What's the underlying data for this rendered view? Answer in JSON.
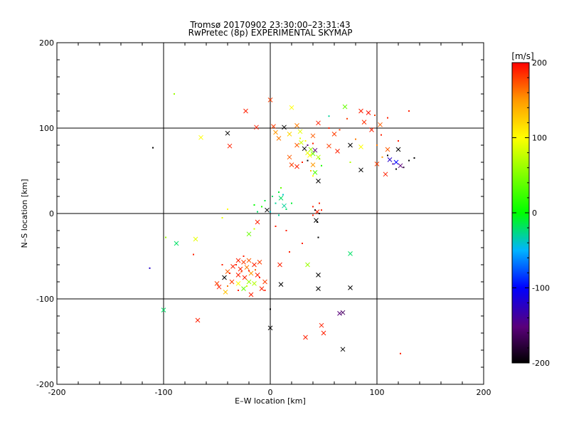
{
  "chart_data": {
    "type": "scatter",
    "title": "Tromsø 20170902 23:30:00–23:31:43",
    "subtitle": "RwPretec (8p) EXPERIMENTAL SKYMAP",
    "xlabel": "E–W location [km]",
    "ylabel": "N–S location [km]",
    "xlim": [
      -200,
      200
    ],
    "ylim": [
      -200,
      200
    ],
    "xticks": [
      -200,
      -100,
      0,
      100,
      200
    ],
    "yticks": [
      -200,
      -100,
      0,
      100,
      200
    ],
    "xtick_labels": [
      "-200",
      "-100",
      "0",
      "100",
      "200"
    ],
    "ytick_labels": [
      "-200",
      "-100",
      "0",
      "100",
      "200"
    ],
    "grid": true,
    "colorbar": {
      "label": "[m/s]",
      "min": -200,
      "max": 200,
      "ticks": [
        200,
        100,
        0,
        -100,
        -200
      ],
      "tick_labels": [
        "200",
        "100",
        "0",
        "-100",
        "-200"
      ]
    },
    "points": [
      {
        "x": 0,
        "y": 133,
        "v": 180,
        "m": "x"
      },
      {
        "x": -23,
        "y": 120,
        "v": 190,
        "m": "x"
      },
      {
        "x": 20,
        "y": 124,
        "v": 100,
        "m": "x"
      },
      {
        "x": 70,
        "y": 125,
        "v": 40,
        "m": "x"
      },
      {
        "x": -13,
        "y": 101,
        "v": 190,
        "m": "x"
      },
      {
        "x": 3,
        "y": 102,
        "v": 180,
        "m": "x"
      },
      {
        "x": 13,
        "y": 101,
        "v": -200,
        "m": "x"
      },
      {
        "x": 25,
        "y": 103,
        "v": 160,
        "m": "x"
      },
      {
        "x": 45,
        "y": 106,
        "v": 190,
        "m": "x"
      },
      {
        "x": -40,
        "y": 94,
        "v": -200,
        "m": "x"
      },
      {
        "x": -65,
        "y": 89,
        "v": 100,
        "m": "x"
      },
      {
        "x": 5,
        "y": 95,
        "v": 150,
        "m": "x"
      },
      {
        "x": 18,
        "y": 93,
        "v": 120,
        "m": "x"
      },
      {
        "x": 28,
        "y": 96,
        "v": 90,
        "m": "x"
      },
      {
        "x": 40,
        "y": 91,
        "v": 170,
        "m": "x"
      },
      {
        "x": 60,
        "y": 93,
        "v": 180,
        "m": "x"
      },
      {
        "x": 85,
        "y": 120,
        "v": 190,
        "m": "x"
      },
      {
        "x": 92,
        "y": 118,
        "v": 195,
        "m": "x"
      },
      {
        "x": 88,
        "y": 107,
        "v": 185,
        "m": "x"
      },
      {
        "x": 95,
        "y": 98,
        "v": 190,
        "m": "x"
      },
      {
        "x": 103,
        "y": 104,
        "v": 170,
        "m": "x"
      },
      {
        "x": -38,
        "y": 79,
        "v": 190,
        "m": "x"
      },
      {
        "x": 8,
        "y": 88,
        "v": 160,
        "m": "x"
      },
      {
        "x": 25,
        "y": 80,
        "v": 170,
        "m": "x"
      },
      {
        "x": 29,
        "y": 83,
        "v": 80,
        "m": "x"
      },
      {
        "x": 32,
        "y": 76,
        "v": -200,
        "m": "x"
      },
      {
        "x": 35,
        "y": 71,
        "v": 90,
        "m": "x"
      },
      {
        "x": 38,
        "y": 75,
        "v": 60,
        "m": "x"
      },
      {
        "x": 40,
        "y": 70,
        "v": 40,
        "m": "x"
      },
      {
        "x": 42,
        "y": 74,
        "v": -150,
        "m": "x"
      },
      {
        "x": 37,
        "y": 68,
        "v": 100,
        "m": "x"
      },
      {
        "x": 45,
        "y": 66,
        "v": 70,
        "m": "x"
      },
      {
        "x": 55,
        "y": 79,
        "v": 180,
        "m": "x"
      },
      {
        "x": 63,
        "y": 73,
        "v": 190,
        "m": "x"
      },
      {
        "x": 75,
        "y": 80,
        "v": -200,
        "m": "x"
      },
      {
        "x": 85,
        "y": 78,
        "v": 100,
        "m": "x"
      },
      {
        "x": 18,
        "y": 66,
        "v": 170,
        "m": "x"
      },
      {
        "x": 20,
        "y": 57,
        "v": 180,
        "m": "x"
      },
      {
        "x": 25,
        "y": 55,
        "v": 190,
        "m": "x"
      },
      {
        "x": 40,
        "y": 57,
        "v": 150,
        "m": "x"
      },
      {
        "x": 42,
        "y": 48,
        "v": 30,
        "m": "x"
      },
      {
        "x": 45,
        "y": 38,
        "v": -200,
        "m": "x"
      },
      {
        "x": 85,
        "y": 51,
        "v": -200,
        "m": "x"
      },
      {
        "x": 100,
        "y": 58,
        "v": 180,
        "m": "x"
      },
      {
        "x": 108,
        "y": 46,
        "v": 190,
        "m": "x"
      },
      {
        "x": 112,
        "y": 63,
        "v": -120,
        "m": "x"
      },
      {
        "x": 118,
        "y": 60,
        "v": -100,
        "m": "x"
      },
      {
        "x": 122,
        "y": 56,
        "v": -150,
        "m": "x"
      },
      {
        "x": 110,
        "y": 75,
        "v": 170,
        "m": "x"
      },
      {
        "x": 120,
        "y": 75,
        "v": -200,
        "m": "x"
      },
      {
        "x": 10,
        "y": 18,
        "v": -20,
        "m": "x"
      },
      {
        "x": 13,
        "y": 9,
        "v": -30,
        "m": "x"
      },
      {
        "x": -3,
        "y": 4,
        "v": -200,
        "m": "x"
      },
      {
        "x": 44,
        "y": 2,
        "v": 190,
        "m": "x"
      },
      {
        "x": 43,
        "y": -8,
        "v": -200,
        "m": "x"
      },
      {
        "x": -12,
        "y": -10,
        "v": 190,
        "m": "x"
      },
      {
        "x": -20,
        "y": -24,
        "v": 40,
        "m": "x"
      },
      {
        "x": -70,
        "y": -30,
        "v": 90,
        "m": "x"
      },
      {
        "x": -88,
        "y": -35,
        "v": -20,
        "m": "x"
      },
      {
        "x": -30,
        "y": -55,
        "v": 190,
        "m": "x"
      },
      {
        "x": -25,
        "y": -57,
        "v": 180,
        "m": "x"
      },
      {
        "x": -20,
        "y": -55,
        "v": 170,
        "m": "x"
      },
      {
        "x": -35,
        "y": -62,
        "v": 190,
        "m": "x"
      },
      {
        "x": -28,
        "y": -65,
        "v": 190,
        "m": "x"
      },
      {
        "x": -22,
        "y": -63,
        "v": 160,
        "m": "x"
      },
      {
        "x": -15,
        "y": -60,
        "v": 190,
        "m": "x"
      },
      {
        "x": -10,
        "y": -57,
        "v": 180,
        "m": "x"
      },
      {
        "x": -40,
        "y": -68,
        "v": 170,
        "m": "x"
      },
      {
        "x": -30,
        "y": -72,
        "v": 190,
        "m": "x"
      },
      {
        "x": -24,
        "y": -75,
        "v": 190,
        "m": "x"
      },
      {
        "x": -18,
        "y": -70,
        "v": 150,
        "m": "x"
      },
      {
        "x": -12,
        "y": -72,
        "v": 190,
        "m": "x"
      },
      {
        "x": -36,
        "y": -80,
        "v": 180,
        "m": "x"
      },
      {
        "x": -30,
        "y": -82,
        "v": 100,
        "m": "x"
      },
      {
        "x": -20,
        "y": -80,
        "v": 60,
        "m": "x"
      },
      {
        "x": -15,
        "y": -82,
        "v": 70,
        "m": "x"
      },
      {
        "x": -43,
        "y": -75,
        "v": -200,
        "m": "x"
      },
      {
        "x": -48,
        "y": -86,
        "v": 190,
        "m": "x"
      },
      {
        "x": -50,
        "y": -82,
        "v": 180,
        "m": "x"
      },
      {
        "x": -42,
        "y": -92,
        "v": 130,
        "m": "x"
      },
      {
        "x": -25,
        "y": -88,
        "v": 40,
        "m": "x"
      },
      {
        "x": -8,
        "y": -88,
        "v": 190,
        "m": "x"
      },
      {
        "x": -5,
        "y": -80,
        "v": 180,
        "m": "x"
      },
      {
        "x": -18,
        "y": -95,
        "v": 190,
        "m": "x"
      },
      {
        "x": 9,
        "y": -60,
        "v": 190,
        "m": "x"
      },
      {
        "x": 35,
        "y": -60,
        "v": 60,
        "m": "x"
      },
      {
        "x": 75,
        "y": -47,
        "v": -20,
        "m": "x"
      },
      {
        "x": 45,
        "y": -72,
        "v": -200,
        "m": "x"
      },
      {
        "x": 10,
        "y": -83,
        "v": -200,
        "m": "x"
      },
      {
        "x": 45,
        "y": -88,
        "v": -200,
        "m": "x"
      },
      {
        "x": 75,
        "y": -87,
        "v": -200,
        "m": "x"
      },
      {
        "x": -100,
        "y": -113,
        "v": -20,
        "m": "x"
      },
      {
        "x": -68,
        "y": -125,
        "v": 190,
        "m": "x"
      },
      {
        "x": 65,
        "y": -117,
        "v": -150,
        "m": "x"
      },
      {
        "x": 68,
        "y": -116,
        "v": -160,
        "m": "x"
      },
      {
        "x": 0,
        "y": -134,
        "v": -200,
        "m": "x"
      },
      {
        "x": 48,
        "y": -131,
        "v": 190,
        "m": "x"
      },
      {
        "x": 50,
        "y": -140,
        "v": 190,
        "m": "x"
      },
      {
        "x": 33,
        "y": -145,
        "v": 190,
        "m": "x"
      },
      {
        "x": 68,
        "y": -159,
        "v": -200,
        "m": "x"
      },
      {
        "x": -110,
        "y": 77,
        "v": -200,
        "m": "dot"
      },
      {
        "x": -90,
        "y": 140,
        "v": 60,
        "m": "dot"
      },
      {
        "x": -45,
        "y": -5,
        "v": 90,
        "m": "dot"
      },
      {
        "x": -40,
        "y": 5,
        "v": 100,
        "m": "dot"
      },
      {
        "x": -113,
        "y": -64,
        "v": -120,
        "m": "dot"
      },
      {
        "x": -98,
        "y": -28,
        "v": 60,
        "m": "dot"
      },
      {
        "x": -72,
        "y": -48,
        "v": 190,
        "m": "dot"
      },
      {
        "x": 0,
        "y": -112,
        "v": -200,
        "m": "dot"
      },
      {
        "x": 122,
        "y": -164,
        "v": 190,
        "m": "dot"
      },
      {
        "x": 30,
        "y": -35,
        "v": 190,
        "m": "dot"
      },
      {
        "x": 45,
        "y": -28,
        "v": -200,
        "m": "dot"
      },
      {
        "x": 18,
        "y": -45,
        "v": 190,
        "m": "dot"
      },
      {
        "x": 55,
        "y": 114,
        "v": -30,
        "m": "dot"
      },
      {
        "x": 72,
        "y": 111,
        "v": 180,
        "m": "dot"
      },
      {
        "x": 130,
        "y": 120,
        "v": 190,
        "m": "dot"
      },
      {
        "x": 135,
        "y": 65,
        "v": -200,
        "m": "dot"
      },
      {
        "x": 130,
        "y": 62,
        "v": -200,
        "m": "dot"
      },
      {
        "x": 125,
        "y": 54,
        "v": -180,
        "m": "dot"
      },
      {
        "x": 118,
        "y": 52,
        "v": -200,
        "m": "dot"
      },
      {
        "x": 115,
        "y": 58,
        "v": -140,
        "m": "dot"
      },
      {
        "x": 110,
        "y": 68,
        "v": -200,
        "m": "dot"
      },
      {
        "x": 105,
        "y": 66,
        "v": 150,
        "m": "dot"
      },
      {
        "x": 100,
        "y": 80,
        "v": 160,
        "m": "dot"
      },
      {
        "x": 104,
        "y": 92,
        "v": 190,
        "m": "dot"
      },
      {
        "x": 98,
        "y": 115,
        "v": 180,
        "m": "dot"
      },
      {
        "x": 110,
        "y": 112,
        "v": 190,
        "m": "dot"
      },
      {
        "x": 120,
        "y": 85,
        "v": 190,
        "m": "dot"
      },
      {
        "x": 8,
        "y": 25,
        "v": -10,
        "m": "dot"
      },
      {
        "x": 12,
        "y": 22,
        "v": -40,
        "m": "dot"
      },
      {
        "x": 2,
        "y": 20,
        "v": -20,
        "m": "dot"
      },
      {
        "x": -5,
        "y": 15,
        "v": -10,
        "m": "dot"
      },
      {
        "x": 5,
        "y": 12,
        "v": -30,
        "m": "dot"
      },
      {
        "x": -8,
        "y": 8,
        "v": 10,
        "m": "dot"
      },
      {
        "x": 15,
        "y": 5,
        "v": -20,
        "m": "dot"
      },
      {
        "x": 20,
        "y": 12,
        "v": -10,
        "m": "dot"
      },
      {
        "x": 0,
        "y": 2,
        "v": -40,
        "m": "dot"
      },
      {
        "x": -12,
        "y": 2,
        "v": -20,
        "m": "dot"
      },
      {
        "x": 8,
        "y": -2,
        "v": -30,
        "m": "dot"
      },
      {
        "x": -15,
        "y": 10,
        "v": 0,
        "m": "dot"
      },
      {
        "x": 10,
        "y": 30,
        "v": 40,
        "m": "dot"
      },
      {
        "x": 42,
        "y": 4,
        "v": -200,
        "m": "dot"
      },
      {
        "x": 46,
        "y": 0,
        "v": -200,
        "m": "dot"
      },
      {
        "x": 40,
        "y": -2,
        "v": 190,
        "m": "dot"
      },
      {
        "x": 44,
        "y": -10,
        "v": -200,
        "m": "dot"
      },
      {
        "x": 48,
        "y": 4,
        "v": 190,
        "m": "dot"
      },
      {
        "x": 40,
        "y": 8,
        "v": 190,
        "m": "dot"
      },
      {
        "x": 46,
        "y": 12,
        "v": 190,
        "m": "dot"
      },
      {
        "x": 28,
        "y": 88,
        "v": 90,
        "m": "dot"
      },
      {
        "x": 33,
        "y": 85,
        "v": 100,
        "m": "dot"
      },
      {
        "x": 35,
        "y": 80,
        "v": -150,
        "m": "dot"
      },
      {
        "x": 40,
        "y": 82,
        "v": 190,
        "m": "dot"
      },
      {
        "x": 46,
        "y": 64,
        "v": 50,
        "m": "dot"
      },
      {
        "x": 48,
        "y": 56,
        "v": 10,
        "m": "dot"
      },
      {
        "x": 38,
        "y": 50,
        "v": 130,
        "m": "dot"
      },
      {
        "x": 40,
        "y": 44,
        "v": 100,
        "m": "dot"
      },
      {
        "x": 35,
        "y": 62,
        "v": -200,
        "m": "dot"
      },
      {
        "x": 30,
        "y": 60,
        "v": 190,
        "m": "dot"
      },
      {
        "x": 55,
        "y": 100,
        "v": 190,
        "m": "dot"
      },
      {
        "x": 65,
        "y": 98,
        "v": 180,
        "m": "dot"
      },
      {
        "x": 75,
        "y": 60,
        "v": 70,
        "m": "dot"
      },
      {
        "x": 80,
        "y": 87,
        "v": 160,
        "m": "dot"
      },
      {
        "x": -25,
        "y": -50,
        "v": 190,
        "m": "dot"
      },
      {
        "x": -32,
        "y": -60,
        "v": 190,
        "m": "dot"
      },
      {
        "x": -27,
        "y": -68,
        "v": 180,
        "m": "dot"
      },
      {
        "x": -20,
        "y": -67,
        "v": 190,
        "m": "dot"
      },
      {
        "x": -14,
        "y": -66,
        "v": 170,
        "m": "dot"
      },
      {
        "x": -38,
        "y": -70,
        "v": 190,
        "m": "dot"
      },
      {
        "x": -22,
        "y": -85,
        "v": 80,
        "m": "dot"
      },
      {
        "x": -45,
        "y": -60,
        "v": 190,
        "m": "dot"
      },
      {
        "x": -10,
        "y": -75,
        "v": 190,
        "m": "dot"
      },
      {
        "x": -5,
        "y": -90,
        "v": 190,
        "m": "dot"
      },
      {
        "x": -30,
        "y": -90,
        "v": 190,
        "m": "dot"
      },
      {
        "x": -40,
        "y": -85,
        "v": 160,
        "m": "dot"
      },
      {
        "x": 15,
        "y": -20,
        "v": 190,
        "m": "dot"
      },
      {
        "x": 5,
        "y": -15,
        "v": 190,
        "m": "dot"
      },
      {
        "x": -15,
        "y": -18,
        "v": 80,
        "m": "dot"
      }
    ]
  }
}
